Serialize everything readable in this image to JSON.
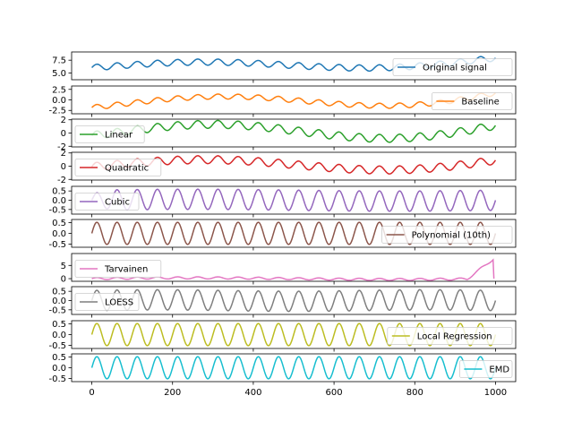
{
  "chart_data": {
    "type": "line",
    "x": {
      "min": 0,
      "max": 1000,
      "ticks": [
        0,
        200,
        400,
        600,
        800,
        1000
      ],
      "tick_labels": [
        "0",
        "200",
        "400",
        "600",
        "800",
        "1000"
      ],
      "lim": [
        -50,
        1050
      ]
    },
    "panels": [
      {
        "name": "Original signal",
        "color": "#1f77b4",
        "ylim": [
          3.7,
          9.1
        ],
        "yticks": [
          5.0,
          7.5
        ],
        "ytick_labels": [
          "5.0",
          "7.5"
        ],
        "legend": "right",
        "signal": {
          "amp": 0.6,
          "period": 50,
          "phase": 0,
          "base": "original"
        }
      },
      {
        "name": "Baseline",
        "color": "#ff7f0e",
        "ylim": [
          -3.3,
          3.3
        ],
        "yticks": [
          -2.5,
          0,
          2.5
        ],
        "ytick_labels": [
          "-2.5",
          "0.0",
          "2.5"
        ],
        "legend": "right",
        "signal": {
          "amp": 0.6,
          "period": 50,
          "phase": 0,
          "base": "baseline"
        }
      },
      {
        "name": "Linear",
        "color": "#2ca02c",
        "ylim": [
          -2.1,
          2.1
        ],
        "yticks": [
          -2,
          0,
          2
        ],
        "ytick_labels": [
          "-2",
          "0",
          "2"
        ],
        "legend": "left",
        "signal": {
          "amp": 0.6,
          "period": 50,
          "phase": 0,
          "base": "linear"
        }
      },
      {
        "name": "Quadratic",
        "color": "#d62728",
        "ylim": [
          -2.1,
          2.1
        ],
        "yticks": [
          -2,
          0,
          2
        ],
        "ytick_labels": [
          "-2",
          "0",
          "2"
        ],
        "legend": "left",
        "signal": {
          "amp": 0.6,
          "period": 50,
          "phase": 0,
          "base": "quadratic"
        }
      },
      {
        "name": "Cubic",
        "color": "#9467bd",
        "ylim": [
          -0.75,
          0.75
        ],
        "yticks": [
          -0.5,
          0,
          0.5
        ],
        "ytick_labels": [
          "-0.5",
          "0.0",
          "0.5"
        ],
        "legend": "left",
        "signal": {
          "amp": 0.55,
          "period": 50,
          "phase": 0,
          "base": "cubic"
        }
      },
      {
        "name": "Polynomial (10th)",
        "color": "#8c564b",
        "ylim": [
          -0.65,
          0.65
        ],
        "yticks": [
          -0.5,
          0,
          0.5
        ],
        "ytick_labels": [
          "-0.5",
          "0.0",
          "0.5"
        ],
        "legend": "right",
        "signal": {
          "amp": 0.52,
          "period": 50,
          "phase": 0,
          "base": "zero"
        }
      },
      {
        "name": "Tarvainen",
        "color": "#e377c2",
        "ylim": [
          -1.0,
          9.5
        ],
        "yticks": [
          0,
          5
        ],
        "ytick_labels": [
          "0",
          "5"
        ],
        "legend": "left",
        "signal": {
          "amp": 0.4,
          "period": 50,
          "phase": 0,
          "base": "tarvainen"
        }
      },
      {
        "name": "LOESS",
        "color": "#7f7f7f",
        "ylim": [
          -0.75,
          0.75
        ],
        "yticks": [
          -0.5,
          0,
          0.5
        ],
        "ytick_labels": [
          "-0.5",
          "0.0",
          "0.5"
        ],
        "legend": "left",
        "signal": {
          "amp": 0.55,
          "period": 50,
          "phase": 0,
          "base": "loess"
        }
      },
      {
        "name": "Local Regression",
        "color": "#bcbd22",
        "ylim": [
          -0.65,
          0.65
        ],
        "yticks": [
          -0.5,
          0,
          0.5
        ],
        "ytick_labels": [
          "-0.5",
          "0.0",
          "0.5"
        ],
        "legend": "right",
        "signal": {
          "amp": 0.52,
          "period": 50,
          "phase": 0,
          "base": "zero"
        }
      },
      {
        "name": "EMD",
        "color": "#17becf",
        "ylim": [
          -0.65,
          0.65
        ],
        "yticks": [
          -0.5,
          0,
          0.5
        ],
        "ytick_labels": [
          "-0.5",
          "0.0",
          "0.5"
        ],
        "legend": "right",
        "signal": {
          "amp": 0.52,
          "period": 50,
          "phase": 0,
          "base": "zero"
        }
      }
    ]
  }
}
